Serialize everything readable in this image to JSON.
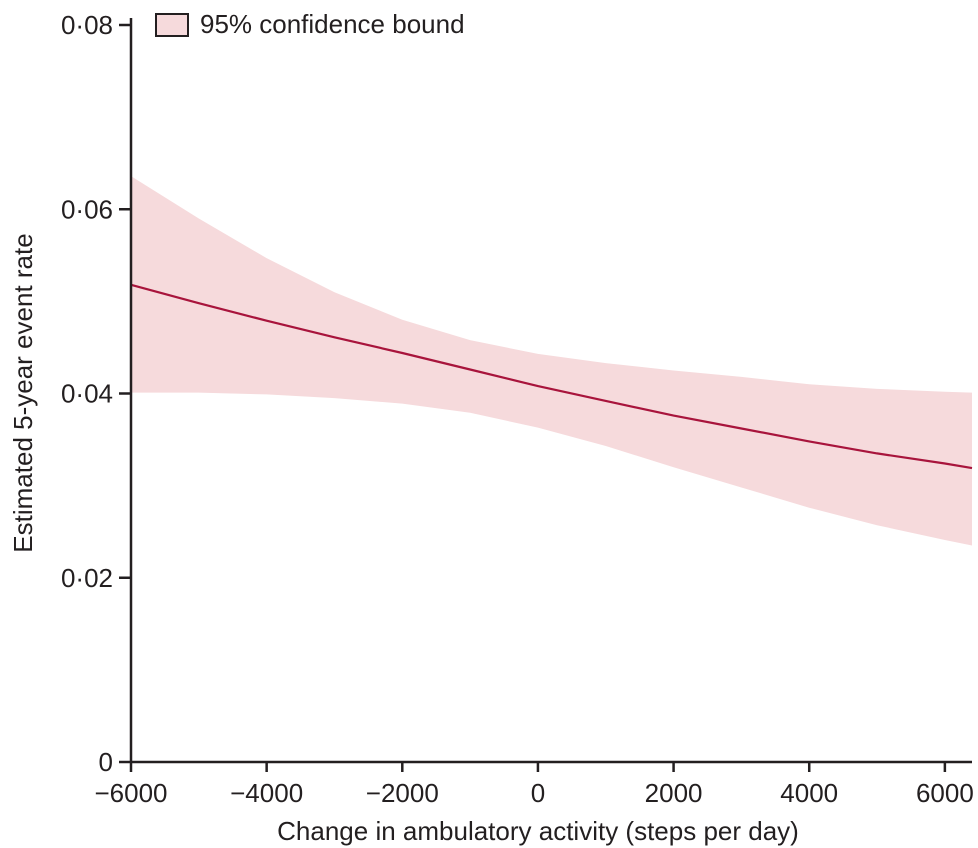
{
  "chart_data": {
    "type": "line",
    "title": "",
    "xlabel": "Change in ambulatory activity (steps per day)",
    "ylabel": "Estimated 5-year event rate",
    "xlim": [
      -6000,
      6400
    ],
    "ylim": [
      0,
      0.08
    ],
    "x_ticks": [
      -6000,
      -4000,
      -2000,
      0,
      2000,
      4000,
      6000
    ],
    "x_tick_labels": [
      "−6000",
      "−4000",
      "−2000",
      "0",
      "2000",
      "4000",
      "6000"
    ],
    "y_ticks": [
      0,
      0.02,
      0.04,
      0.06,
      0.08
    ],
    "y_tick_labels": [
      "0",
      "0·02",
      "0·04",
      "0·06",
      "0·08"
    ],
    "grid": false,
    "legend": {
      "placement": "top-left",
      "entries": [
        "95% confidence bound"
      ]
    },
    "colors": {
      "line": "#a8143c",
      "band": "#f6dadc",
      "band_edge": "#231f20",
      "axis": "#231f20"
    },
    "series": [
      {
        "type": "line",
        "x": [
          -6000,
          -5000,
          -4000,
          -3000,
          -2000,
          -1000,
          0,
          1000,
          2000,
          3000,
          4000,
          5000,
          6000,
          6400
        ],
        "y": [
          0.0518,
          0.0498,
          0.0479,
          0.0461,
          0.0444,
          0.0426,
          0.0408,
          0.0392,
          0.0376,
          0.0362,
          0.0348,
          0.0335,
          0.0324,
          0.0319
        ]
      },
      {
        "name": "95% confidence bound",
        "type": "band",
        "x": [
          -6000,
          -5000,
          -4000,
          -3000,
          -2000,
          -1000,
          0,
          1000,
          2000,
          3000,
          4000,
          5000,
          6000,
          6400
        ],
        "lower": [
          0.0401,
          0.0401,
          0.0399,
          0.0395,
          0.0389,
          0.0379,
          0.0363,
          0.0343,
          0.032,
          0.0298,
          0.0276,
          0.0257,
          0.0241,
          0.0235
        ],
        "upper": [
          0.0636,
          0.059,
          0.0547,
          0.051,
          0.048,
          0.0458,
          0.0443,
          0.0433,
          0.0425,
          0.0418,
          0.041,
          0.0405,
          0.0402,
          0.0401
        ]
      }
    ]
  }
}
